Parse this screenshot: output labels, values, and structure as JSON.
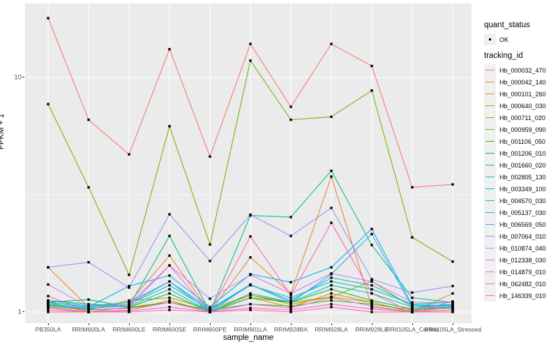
{
  "figure": {
    "y_axis": {
      "label": "FPKM + 1",
      "ticks": [
        "10",
        "1"
      ],
      "tick_values": [
        10,
        1
      ]
    },
    "x_axis": {
      "label": "sample_name"
    },
    "legend": {
      "quant_status": {
        "title": "quant_status",
        "items": [
          {
            "label": "OK",
            "marker": "black-square-point"
          }
        ]
      },
      "tracking_id": {
        "title": "tracking_id"
      }
    },
    "style": {
      "panel_bg": "#EBEBEB",
      "gridline_color": "#FFFFFF",
      "tick_label_color": "#4D4D4D",
      "point_color": "#000000",
      "legend_key_bg": "#F0F0F0"
    }
  },
  "chart_data": {
    "type": "line",
    "title": "",
    "xlabel": "sample_name",
    "ylabel": "FPKM + 1",
    "y_scale": "log10",
    "ylim": [
      1,
      18
    ],
    "y_ticks": [
      1,
      10
    ],
    "y_minor_gridlines": [
      3.162
    ],
    "grid": true,
    "legend_position": "right",
    "point_status_label": "OK",
    "categories": [
      "PB350LA",
      "RRIM600LA",
      "RRIM600LE",
      "RRIM600SE",
      "RRIM600PE",
      "RRIM901LA",
      "RRIM928BA",
      "RRIM928LA",
      "RRIM928LE",
      "RRII105LA_Control",
      "RRII105LA_Stressed"
    ],
    "series": [
      {
        "name": "Hb_000032_470",
        "color": "#F8766D",
        "values": [
          17.9,
          6.6,
          4.7,
          13.2,
          4.6,
          13.9,
          7.5,
          13.9,
          11.2,
          3.4,
          3.5
        ]
      },
      {
        "name": "Hb_000042_140",
        "color": "#EA8331",
        "values": [
          1.55,
          1.05,
          1.1,
          1.74,
          1.0,
          1.71,
          1.2,
          3.78,
          1.05,
          1.0,
          1.2
        ]
      },
      {
        "name": "Hb_000101_260",
        "color": "#D89000",
        "values": [
          1.1,
          1.0,
          1.05,
          1.1,
          1.0,
          1.15,
          1.05,
          1.2,
          1.1,
          1.0,
          1.05
        ]
      },
      {
        "name": "Hb_000640_030",
        "color": "#C09B00",
        "values": [
          1.05,
          1.0,
          1.02,
          1.12,
          1.0,
          1.18,
          1.08,
          1.16,
          1.1,
          1.0,
          1.02
        ]
      },
      {
        "name": "Hb_000711_020",
        "color": "#A3A500",
        "values": [
          1.08,
          1.02,
          1.12,
          1.15,
          1.03,
          1.18,
          1.1,
          1.16,
          1.35,
          1.05,
          1.04
        ]
      },
      {
        "name": "Hb_000959_090",
        "color": "#7CAE00",
        "values": [
          7.7,
          3.4,
          1.44,
          6.2,
          1.94,
          11.8,
          6.6,
          6.8,
          8.8,
          2.08,
          1.64
        ]
      },
      {
        "name": "Hb_001106_050",
        "color": "#39B600",
        "values": [
          1.06,
          1.02,
          1.04,
          1.1,
          1.02,
          1.08,
          1.06,
          1.12,
          1.08,
          1.02,
          1.04
        ]
      },
      {
        "name": "Hb_001206_010",
        "color": "#00BB4E",
        "values": [
          1.1,
          1.13,
          1.05,
          1.2,
          1.0,
          1.15,
          1.1,
          1.25,
          1.12,
          1.03,
          1.05
        ]
      },
      {
        "name": "Hb_001660_020",
        "color": "#00BF7D",
        "values": [
          1.12,
          1.08,
          1.06,
          2.11,
          1.0,
          2.58,
          2.54,
          4.0,
          1.93,
          1.15,
          1.1
        ]
      },
      {
        "name": "Hb_002805_130",
        "color": "#00C1A3",
        "values": [
          1.1,
          1.05,
          1.08,
          1.3,
          1.02,
          1.3,
          1.15,
          1.35,
          1.25,
          1.08,
          1.1
        ]
      },
      {
        "name": "Hb_003349_100",
        "color": "#00BFC4",
        "values": [
          1.08,
          1.04,
          1.06,
          1.25,
          1.0,
          1.2,
          1.1,
          1.3,
          1.2,
          1.05,
          1.08
        ]
      },
      {
        "name": "Hb_004570_030",
        "color": "#00BAE0",
        "values": [
          1.12,
          1.06,
          1.1,
          1.35,
          1.03,
          1.31,
          1.12,
          1.4,
          1.3,
          1.07,
          1.06
        ]
      },
      {
        "name": "Hb_005137_030",
        "color": "#00B0F6",
        "values": [
          1.1,
          1.05,
          1.29,
          1.43,
          1.05,
          1.45,
          1.34,
          1.55,
          2.26,
          1.07,
          1.07
        ]
      },
      {
        "name": "Hb_006569_050",
        "color": "#35A2FF",
        "values": [
          1.07,
          1.03,
          1.08,
          1.35,
          1.0,
          1.31,
          1.1,
          1.45,
          2.15,
          1.05,
          1.06
        ]
      },
      {
        "name": "Hb_007064_010",
        "color": "#9590FF",
        "values": [
          1.55,
          1.63,
          1.27,
          2.61,
          1.65,
          2.6,
          2.11,
          2.78,
          1.38,
          1.21,
          1.29
        ]
      },
      {
        "name": "Hb_010874_040",
        "color": "#C77CFF",
        "values": [
          1.31,
          1.05,
          1.08,
          1.58,
          1.14,
          1.44,
          1.2,
          1.46,
          1.35,
          1.1,
          1.1
        ]
      },
      {
        "name": "Hb_012338_030",
        "color": "#E76BF3",
        "values": [
          1.04,
          1.0,
          1.02,
          1.1,
          1.0,
          1.08,
          1.04,
          1.15,
          1.06,
          1.0,
          1.11
        ]
      },
      {
        "name": "Hb_014879_010",
        "color": "#FA62DB",
        "values": [
          1.02,
          1.0,
          1.01,
          1.05,
          1.0,
          1.04,
          1.02,
          1.08,
          1.03,
          1.0,
          1.02
        ]
      },
      {
        "name": "Hb_062482_010",
        "color": "#FF62BC",
        "values": [
          1.17,
          1.0,
          1.05,
          1.58,
          1.0,
          2.1,
          1.18,
          2.4,
          1.2,
          1.0,
          1.05
        ]
      },
      {
        "name": "Hb_146339_010",
        "color": "#FF6A98",
        "values": [
          1.0,
          1.0,
          1.0,
          1.02,
          1.0,
          1.02,
          1.0,
          1.05,
          1.0,
          1.0,
          1.0
        ]
      }
    ]
  }
}
